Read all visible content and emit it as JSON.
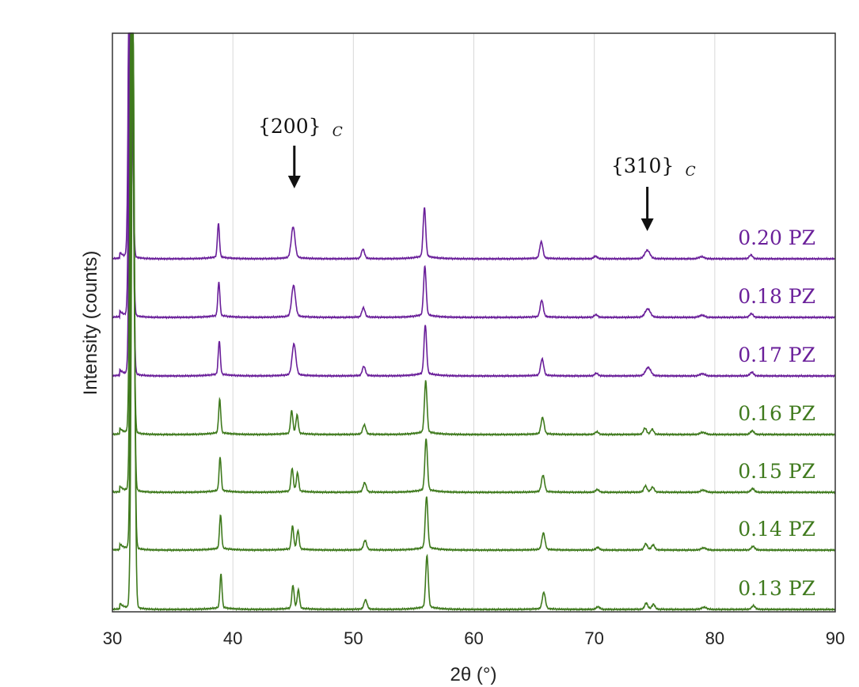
{
  "chart_data": {
    "type": "line",
    "xlabel": "2θ (°)",
    "ylabel": "Intensity (counts)",
    "xlim": [
      30,
      90
    ],
    "xticks": [
      "30",
      "40",
      "50",
      "60",
      "70",
      "80",
      "90"
    ],
    "grid": "vertical",
    "annotations": [
      {
        "text": "{200}",
        "sub": "C",
        "x": 45.1
      },
      {
        "text": "{310}",
        "sub": "C",
        "x": 74.4
      }
    ],
    "colors": {
      "purple": "#6a1f9a",
      "green": "#3f7a1d"
    },
    "peaks": [
      {
        "x": 31.5,
        "h": 1.0,
        "w": 0.18
      },
      {
        "x": 38.8,
        "h": 0.33,
        "w": 0.12
      },
      {
        "x": 45.0,
        "h": 0.3,
        "w": 0.22
      },
      {
        "x": 50.8,
        "h": 0.09,
        "w": 0.18
      },
      {
        "x": 55.9,
        "h": 0.48,
        "w": 0.15
      },
      {
        "x": 65.6,
        "h": 0.16,
        "w": 0.18
      },
      {
        "x": 70.1,
        "h": 0.025,
        "w": 0.2
      },
      {
        "x": 74.4,
        "h": 0.08,
        "w": 0.3
      },
      {
        "x": 78.9,
        "h": 0.02,
        "w": 0.3
      },
      {
        "x": 83.0,
        "h": 0.035,
        "w": 0.2
      }
    ],
    "series": [
      {
        "name": "0.20 PZ",
        "color": "purple",
        "split": false
      },
      {
        "name": "0.18 PZ",
        "color": "purple",
        "split": false
      },
      {
        "name": "0.17 PZ",
        "color": "purple",
        "split": false
      },
      {
        "name": "0.16 PZ",
        "color": "green",
        "split": true
      },
      {
        "name": "0.15 PZ",
        "color": "green",
        "split": true
      },
      {
        "name": "0.14 PZ",
        "color": "green",
        "split": true
      },
      {
        "name": "0.13 PZ",
        "color": "green",
        "split": true
      }
    ]
  }
}
